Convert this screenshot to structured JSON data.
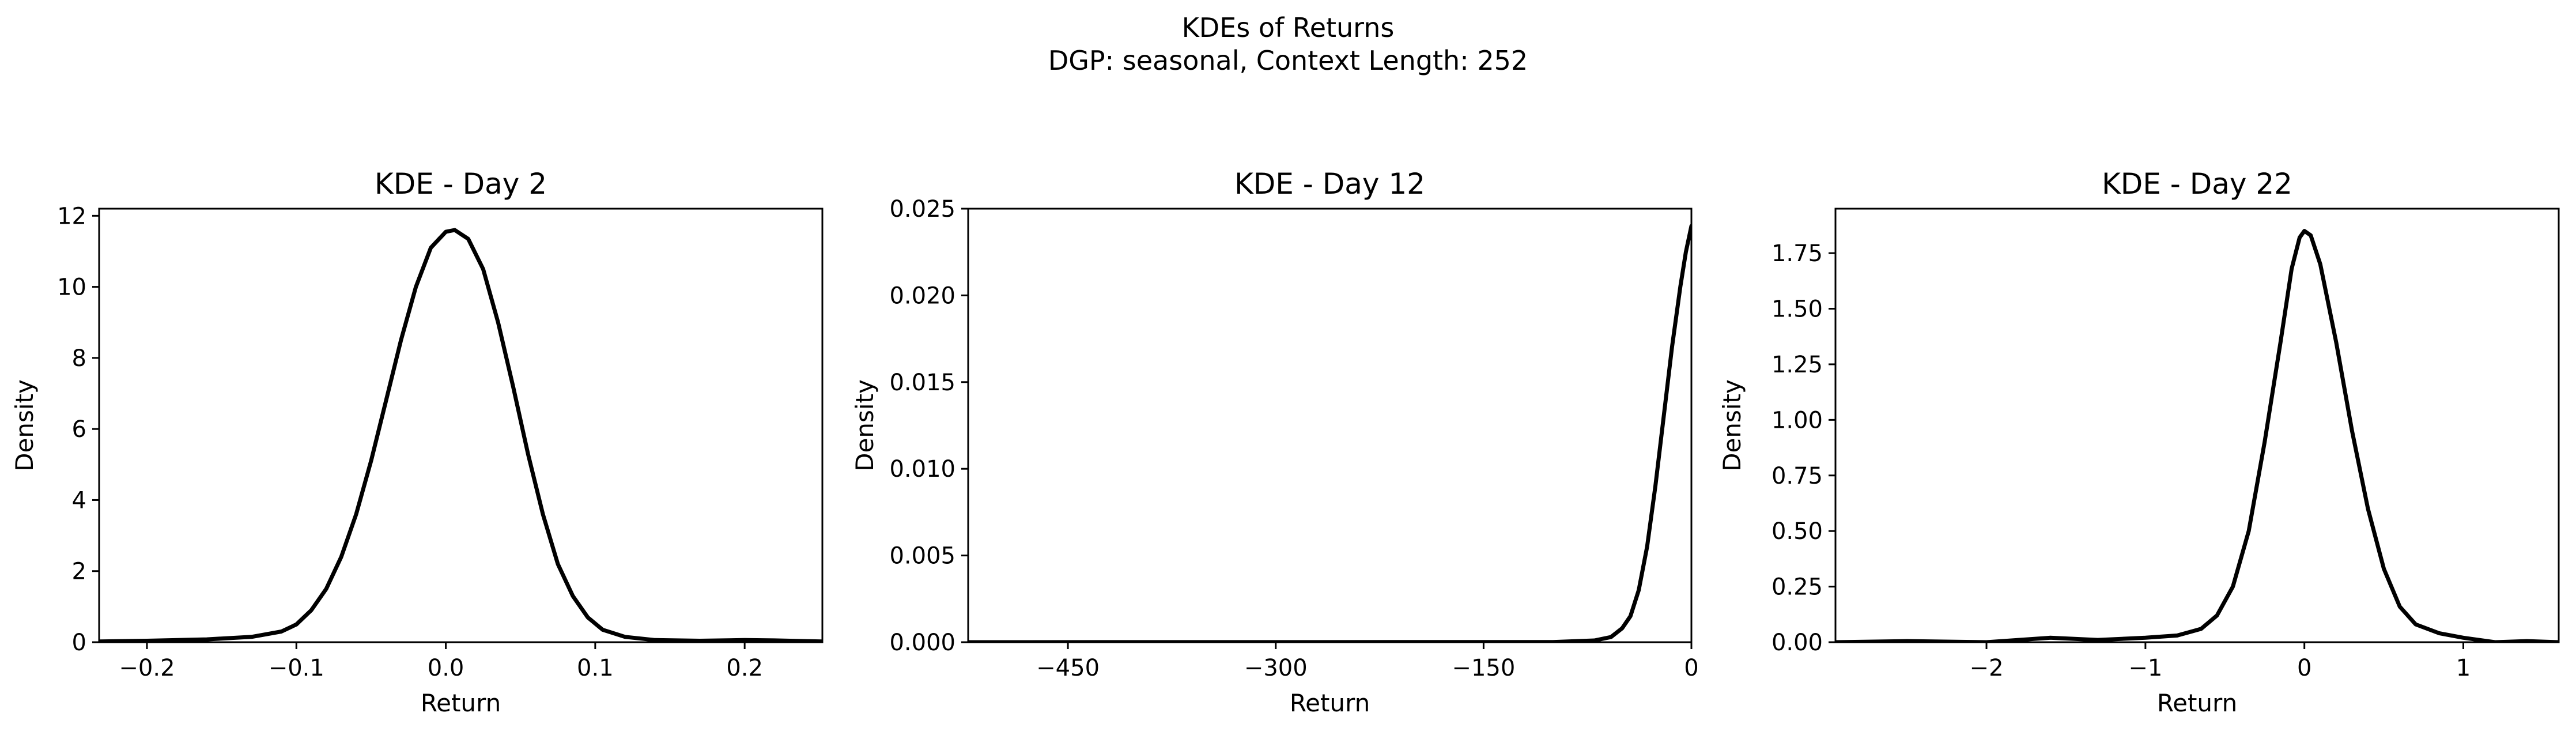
{
  "figure": {
    "title_line1": "KDEs of Returns",
    "title_line2": "DGP: seasonal, Context Length: 252"
  },
  "chart_data": [
    {
      "type": "line",
      "title": "KDE - Day 2",
      "xlabel": "Return",
      "ylabel": "Density",
      "xlim": [
        -0.232,
        0.252
      ],
      "ylim": [
        0,
        12.2
      ],
      "xticks": [
        -0.2,
        -0.1,
        0.0,
        0.1,
        0.2
      ],
      "xtick_labels": [
        "−0.2",
        "−0.1",
        "0.0",
        "0.1",
        "0.2"
      ],
      "yticks": [
        0,
        2,
        4,
        6,
        8,
        10,
        12
      ],
      "ytick_labels": [
        "0",
        "2",
        "4",
        "6",
        "8",
        "10",
        "12"
      ],
      "grid": false,
      "line_color": "#000000",
      "series": [
        {
          "x": [
            -0.232,
            -0.2,
            -0.16,
            -0.13,
            -0.11,
            -0.1,
            -0.09,
            -0.08,
            -0.07,
            -0.06,
            -0.05,
            -0.04,
            -0.03,
            -0.02,
            -0.01,
            0.0,
            0.006,
            0.015,
            0.025,
            0.035,
            0.045,
            0.055,
            0.065,
            0.075,
            0.085,
            0.095,
            0.105,
            0.12,
            0.14,
            0.17,
            0.2,
            0.22,
            0.252
          ],
          "y": [
            0.02,
            0.04,
            0.08,
            0.15,
            0.3,
            0.5,
            0.9,
            1.5,
            2.4,
            3.6,
            5.1,
            6.8,
            8.5,
            10.0,
            11.1,
            11.55,
            11.6,
            11.35,
            10.5,
            9.0,
            7.2,
            5.3,
            3.6,
            2.2,
            1.3,
            0.7,
            0.35,
            0.15,
            0.06,
            0.04,
            0.06,
            0.05,
            0.02
          ]
        }
      ]
    },
    {
      "type": "line",
      "title": "KDE - Day 12",
      "xlabel": "Return",
      "ylabel": "Density",
      "xlim": [
        -522,
        0
      ],
      "ylim": [
        0,
        0.025
      ],
      "xticks": [
        -450,
        -300,
        -150,
        0
      ],
      "xtick_labels": [
        "−450",
        "−300",
        "−150",
        "0"
      ],
      "yticks": [
        0,
        0.005,
        0.01,
        0.015,
        0.02,
        0.025
      ],
      "ytick_labels": [
        "0.000",
        "0.005",
        "0.010",
        "0.015",
        "0.020",
        "0.025"
      ],
      "grid": false,
      "line_color": "#000000",
      "series": [
        {
          "x": [
            -522,
            -100,
            -70,
            -58,
            -50,
            -44,
            -38,
            -32,
            -26,
            -20,
            -14,
            -8,
            -4,
            0
          ],
          "y": [
            0,
            1e-05,
            0.0001,
            0.0003,
            0.0008,
            0.0015,
            0.003,
            0.0055,
            0.009,
            0.013,
            0.017,
            0.0205,
            0.0225,
            0.024
          ]
        }
      ]
    },
    {
      "type": "line",
      "title": "KDE - Day 22",
      "xlabel": "Return",
      "ylabel": "Density",
      "xlim": [
        -2.95,
        1.6
      ],
      "ylim": [
        0,
        1.95
      ],
      "xticks": [
        -2,
        -1,
        0,
        1
      ],
      "xtick_labels": [
        "−2",
        "−1",
        "0",
        "1"
      ],
      "yticks": [
        0,
        0.25,
        0.5,
        0.75,
        1.0,
        1.25,
        1.5,
        1.75
      ],
      "ytick_labels": [
        "0.00",
        "0.25",
        "0.50",
        "0.75",
        "1.00",
        "1.25",
        "1.50",
        "1.75"
      ],
      "grid": false,
      "line_color": "#000000",
      "series": [
        {
          "x": [
            -2.95,
            -2.5,
            -2.0,
            -1.6,
            -1.3,
            -1.0,
            -0.8,
            -0.65,
            -0.55,
            -0.45,
            -0.35,
            -0.25,
            -0.15,
            -0.08,
            -0.03,
            0.0,
            0.04,
            0.1,
            0.2,
            0.3,
            0.4,
            0.5,
            0.6,
            0.7,
            0.85,
            1.0,
            1.2,
            1.4,
            1.6
          ],
          "y": [
            0.0,
            0.005,
            0.0,
            0.02,
            0.01,
            0.02,
            0.03,
            0.06,
            0.12,
            0.25,
            0.5,
            0.9,
            1.35,
            1.68,
            1.82,
            1.85,
            1.83,
            1.7,
            1.35,
            0.95,
            0.6,
            0.33,
            0.16,
            0.08,
            0.04,
            0.02,
            0.0,
            0.005,
            0.0
          ]
        }
      ]
    }
  ]
}
